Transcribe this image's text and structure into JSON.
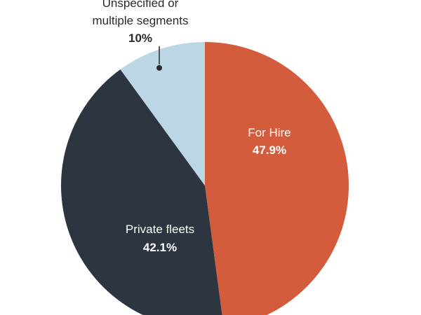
{
  "chart_data": {
    "type": "pie",
    "slices": [
      {
        "label": "For Hire",
        "value_label": "47.9%",
        "value": 47.9,
        "color": "#d35c3d"
      },
      {
        "label": "Private fleets",
        "value_label": "42.1%",
        "value": 42.1,
        "color": "#2c3540"
      },
      {
        "label_lines": [
          "Unspecified or",
          "multiple segments"
        ],
        "value_label": "10%",
        "value": 10,
        "color": "#bcd7e4"
      }
    ]
  }
}
